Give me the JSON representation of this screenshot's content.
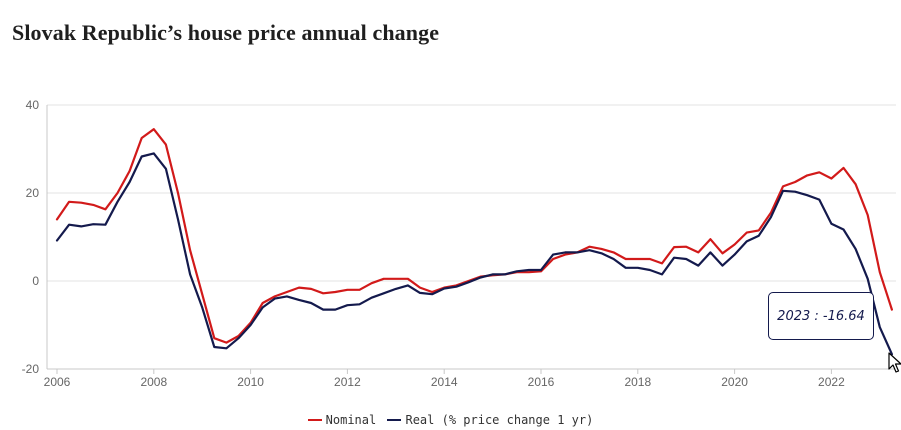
{
  "title": "Slovak Republic’s house price annual change",
  "colors": {
    "nominal": "#d21a1a",
    "real": "#141a4d",
    "grid": "#e3e3e3",
    "axis": "#c8c8c8"
  },
  "tooltip": {
    "text": "2023 :  -16.64"
  },
  "cursor_icon": "mouse-pointer-icon",
  "chart_data": {
    "type": "line",
    "title": "Slovak Republic’s house price annual change",
    "xlabel": "",
    "ylabel": "",
    "xlim": [
      2006,
      2023.25
    ],
    "ylim": [
      -20,
      40
    ],
    "x_ticks": [
      2006,
      2008,
      2010,
      2012,
      2014,
      2016,
      2018,
      2020,
      2022
    ],
    "y_ticks": [
      -20,
      0,
      20,
      40
    ],
    "grid": "horizontal",
    "legend_position": "bottom-center",
    "legend_suffix": "(% price change 1 yr)",
    "x": [
      2006.0,
      2006.25,
      2006.5,
      2006.75,
      2007.0,
      2007.25,
      2007.5,
      2007.75,
      2008.0,
      2008.25,
      2008.5,
      2008.75,
      2009.0,
      2009.25,
      2009.5,
      2009.75,
      2010.0,
      2010.25,
      2010.5,
      2010.75,
      2011.0,
      2011.25,
      2011.5,
      2011.75,
      2012.0,
      2012.25,
      2012.5,
      2012.75,
      2013.0,
      2013.25,
      2013.5,
      2013.75,
      2014.0,
      2014.25,
      2014.5,
      2014.75,
      2015.0,
      2015.25,
      2015.5,
      2015.75,
      2016.0,
      2016.25,
      2016.5,
      2016.75,
      2017.0,
      2017.25,
      2017.5,
      2017.75,
      2018.0,
      2018.25,
      2018.5,
      2018.75,
      2019.0,
      2019.25,
      2019.5,
      2019.75,
      2020.0,
      2020.25,
      2020.5,
      2020.75,
      2021.0,
      2021.25,
      2021.5,
      2021.75,
      2022.0,
      2022.25,
      2022.5,
      2022.75,
      2023.0,
      2023.25
    ],
    "series": [
      {
        "name": "Nominal",
        "values": [
          14.0,
          18.0,
          17.8,
          17.3,
          16.3,
          20.0,
          25.0,
          32.5,
          34.5,
          31.0,
          20.0,
          7.0,
          -3.0,
          -13.0,
          -14.0,
          -12.5,
          -9.5,
          -5.0,
          -3.5,
          -2.5,
          -1.5,
          -1.8,
          -2.8,
          -2.5,
          -2.0,
          -2.0,
          -0.5,
          0.5,
          0.5,
          0.5,
          -1.5,
          -2.5,
          -1.5,
          -1.0,
          0.0,
          1.0,
          1.3,
          1.5,
          2.0,
          2.0,
          2.2,
          5.0,
          6.0,
          6.5,
          7.8,
          7.3,
          6.5,
          5.0,
          5.0,
          5.0,
          4.0,
          7.7,
          7.8,
          6.5,
          9.5,
          6.3,
          8.3,
          11.0,
          11.5,
          15.5,
          21.5,
          22.5,
          24.0,
          24.7,
          23.3,
          25.7,
          22.0,
          15.0,
          2.0,
          -6.5
        ]
      },
      {
        "name": "Real",
        "values": [
          9.2,
          12.8,
          12.4,
          12.9,
          12.8,
          18.0,
          22.5,
          28.3,
          29.0,
          25.5,
          14.0,
          1.5,
          -6.0,
          -15.0,
          -15.3,
          -13.0,
          -10.0,
          -6.0,
          -4.0,
          -3.5,
          -4.3,
          -5.0,
          -6.5,
          -6.5,
          -5.5,
          -5.3,
          -3.8,
          -2.8,
          -1.8,
          -1.0,
          -2.7,
          -3.0,
          -1.7,
          -1.3,
          -0.3,
          0.8,
          1.5,
          1.5,
          2.2,
          2.5,
          2.5,
          6.0,
          6.5,
          6.5,
          7.0,
          6.3,
          5.0,
          3.0,
          3.0,
          2.5,
          1.5,
          5.3,
          5.0,
          3.5,
          6.5,
          3.5,
          6.0,
          9.0,
          10.3,
          14.5,
          20.5,
          20.3,
          19.5,
          18.5,
          13.0,
          11.7,
          7.3,
          0.5,
          -10.5,
          -16.64
        ]
      }
    ]
  }
}
